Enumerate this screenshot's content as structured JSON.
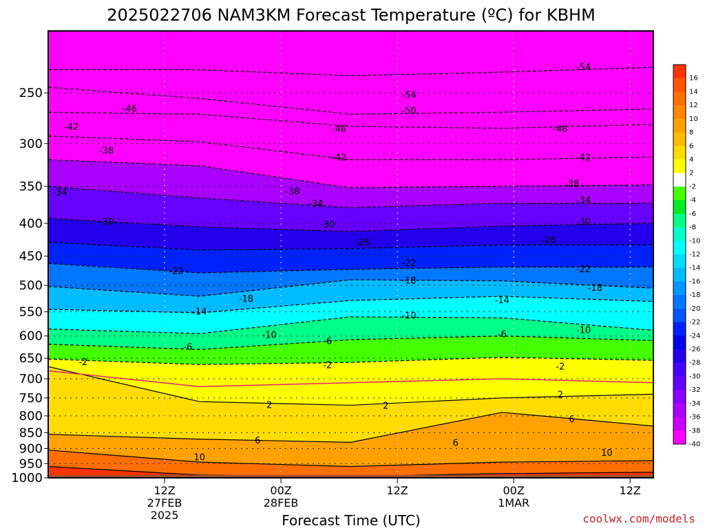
{
  "title": "2025022706 NAM3KM Forecast Temperature (ºC) for KBHM",
  "credit": "coolwx.com/models",
  "colors": {
    "ground": "#a0522d",
    "freezing_line": "#e0226e",
    "frame": "#000000"
  },
  "chart_data": {
    "type": "heatmap",
    "title": "2025022706 NAM3KM Forecast Temperature (ºC) for KBHM",
    "xlabel": "Forecast Time (UTC)",
    "ylabel": "",
    "x_range_hours": [
      -14,
      38
    ],
    "y_range_hPa": [
      200,
      1000
    ],
    "y_scale": "log-pressure",
    "y_ticks": [
      250,
      300,
      350,
      400,
      450,
      500,
      550,
      600,
      650,
      700,
      750,
      800,
      850,
      900,
      950,
      1000
    ],
    "x_ticks": [
      {
        "hour": -4,
        "lines": [
          "12Z",
          "27FEB",
          "2025"
        ]
      },
      {
        "hour": 6,
        "lines": [
          "00Z",
          "28FEB"
        ]
      },
      {
        "hour": 16,
        "lines": [
          "12Z"
        ]
      },
      {
        "hour": 26,
        "lines": [
          "00Z",
          "1MAR"
        ]
      },
      {
        "hour": 36,
        "lines": [
          "12Z"
        ]
      }
    ],
    "colorbar": {
      "labels": [
        "16",
        "14",
        "12",
        "10",
        "8",
        "6",
        "4",
        "2",
        "-2",
        "-4",
        "-6",
        "-8",
        "-10",
        "-12",
        "-14",
        "-16",
        "-18",
        "-20",
        "-22",
        "-24",
        "-26",
        "-28",
        "-30",
        "-32",
        "-34",
        "-36",
        "-38",
        "-40"
      ],
      "colors": [
        "#ff3300",
        "#ff5500",
        "#ff6f00",
        "#ff8800",
        "#ffa200",
        "#ffbb00",
        "#ffdd00",
        "#ffff00",
        "#ffffff",
        "#44ff00",
        "#00ee22",
        "#00ff88",
        "#00ffcc",
        "#00ffff",
        "#00ddff",
        "#00bbff",
        "#0099ff",
        "#0077ff",
        "#0055ff",
        "#0022ff",
        "#0000ee",
        "#2200ee",
        "#4400ff",
        "#6600ff",
        "#8800ff",
        "#aa00ff",
        "#cc00ff",
        "#ff00ff"
      ]
    },
    "series": [
      {
        "value": -54,
        "pressure": [
          230,
          230,
          235,
          232,
          228
        ]
      },
      {
        "value": -50,
        "pressure": [
          245,
          255,
          270,
          268,
          265
        ]
      },
      {
        "value": -46,
        "pressure": [
          268,
          270,
          282,
          284,
          280
        ]
      },
      {
        "value": -42,
        "pressure": [
          292,
          298,
          318,
          318,
          315
        ]
      },
      {
        "value": -38,
        "pressure": [
          318,
          325,
          352,
          350,
          348
        ]
      },
      {
        "value": -34,
        "pressure": [
          350,
          365,
          378,
          372,
          372
        ]
      },
      {
        "value": -30,
        "pressure": [
          393,
          405,
          412,
          404,
          400
        ]
      },
      {
        "value": -26,
        "pressure": [
          428,
          440,
          438,
          432,
          432
        ]
      },
      {
        "value": -22,
        "pressure": [
          462,
          478,
          472,
          468,
          468
        ]
      },
      {
        "value": -18,
        "pressure": [
          502,
          520,
          490,
          492,
          505
        ]
      },
      {
        "value": -14,
        "pressure": [
          545,
          552,
          528,
          520,
          530
        ]
      },
      {
        "value": -10,
        "pressure": [
          585,
          595,
          560,
          562,
          588
        ]
      },
      {
        "value": -6,
        "pressure": [
          618,
          630,
          608,
          600,
          610
        ]
      },
      {
        "value": -2,
        "pressure": [
          652,
          665,
          660,
          648,
          655
        ]
      },
      {
        "value": 2,
        "pressure": [
          670,
          760,
          770,
          750,
          740
        ]
      },
      {
        "value": 6,
        "pressure": [
          855,
          870,
          880,
          790,
          830
        ]
      },
      {
        "value": 10,
        "pressure": [
          905,
          945,
          960,
          945,
          940
        ]
      },
      {
        "value": 14,
        "pressure": [
          960,
          990,
          995,
          985,
          980
        ]
      }
    ],
    "freezing_line_pressure": [
      680,
      720,
      710,
      700,
      710
    ],
    "contour_labels": [
      {
        "text": "-54",
        "x": 32,
        "p": 228
      },
      {
        "text": "-54",
        "x": 17,
        "p": 252
      },
      {
        "text": "-46",
        "x": -7,
        "p": 265
      },
      {
        "text": "-50",
        "x": 17,
        "p": 267
      },
      {
        "text": "-42",
        "x": -12,
        "p": 283
      },
      {
        "text": "-46",
        "x": 11,
        "p": 285
      },
      {
        "text": "-46",
        "x": 30,
        "p": 285
      },
      {
        "text": "-38",
        "x": -9,
        "p": 308
      },
      {
        "text": "-42",
        "x": 11,
        "p": 316
      },
      {
        "text": "-42",
        "x": 32,
        "p": 316
      },
      {
        "text": "-34",
        "x": -13,
        "p": 358
      },
      {
        "text": "-38",
        "x": 7,
        "p": 357
      },
      {
        "text": "-38",
        "x": 31,
        "p": 347
      },
      {
        "text": "-34",
        "x": 9,
        "p": 373
      },
      {
        "text": "-34",
        "x": 32,
        "p": 368
      },
      {
        "text": "-30",
        "x": -9,
        "p": 398
      },
      {
        "text": "-30",
        "x": 10,
        "p": 402
      },
      {
        "text": "-30",
        "x": 32,
        "p": 398
      },
      {
        "text": "-26",
        "x": 13,
        "p": 428
      },
      {
        "text": "-26",
        "x": 29,
        "p": 425
      },
      {
        "text": "-22",
        "x": -3,
        "p": 475
      },
      {
        "text": "-22",
        "x": 17,
        "p": 462
      },
      {
        "text": "-22",
        "x": 32,
        "p": 472
      },
      {
        "text": "-18",
        "x": 3,
        "p": 525
      },
      {
        "text": "-18",
        "x": 17,
        "p": 492
      },
      {
        "text": "-18",
        "x": 33,
        "p": 505
      },
      {
        "text": "-14",
        "x": -1,
        "p": 550
      },
      {
        "text": "-14",
        "x": 25,
        "p": 528
      },
      {
        "text": "-10",
        "x": 5,
        "p": 598
      },
      {
        "text": "-10",
        "x": 17,
        "p": 558
      },
      {
        "text": "-10",
        "x": 32,
        "p": 588
      },
      {
        "text": "-6",
        "x": -2,
        "p": 625
      },
      {
        "text": "-6",
        "x": 10,
        "p": 612
      },
      {
        "text": "-6",
        "x": 25,
        "p": 597
      },
      {
        "text": "-2",
        "x": -11,
        "p": 660
      },
      {
        "text": "-2",
        "x": 10,
        "p": 667
      },
      {
        "text": "-2",
        "x": 30,
        "p": 670
      },
      {
        "text": "2",
        "x": 5,
        "p": 770
      },
      {
        "text": "2",
        "x": 15,
        "p": 772
      },
      {
        "text": "2",
        "x": 30,
        "p": 742
      },
      {
        "text": "6",
        "x": 4,
        "p": 875
      },
      {
        "text": "6",
        "x": 21,
        "p": 883
      },
      {
        "text": "6",
        "x": 31,
        "p": 810
      },
      {
        "text": "10",
        "x": -1,
        "p": 930
      },
      {
        "text": "10",
        "x": 34,
        "p": 915
      }
    ]
  }
}
